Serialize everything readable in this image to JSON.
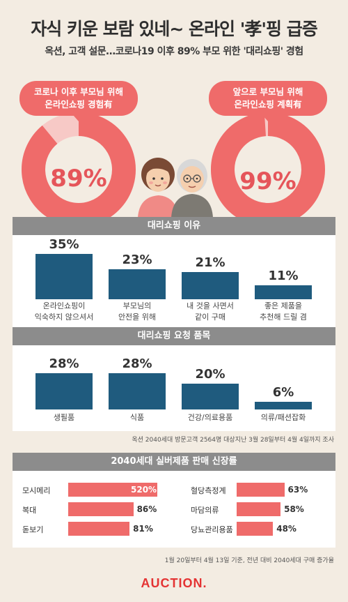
{
  "header": {
    "title": "자식 키운 보람 있네~ 온라인 '孝'핑 급증",
    "subtitle": "옥션, 고객 설문…코로나19 이후 89% 부모 위한  '대리쇼핑' 경험"
  },
  "top_stats": [
    {
      "bubble_line1": "코로나 이후 부모님 위해",
      "bubble_line2": "온라인쇼핑 경험有",
      "value_label": "89%",
      "value": 89
    },
    {
      "bubble_line1": "앞으로 부모님 위해",
      "bubble_line2": "온라인쇼핑 계획有",
      "value_label": "99%",
      "value": 99
    }
  ],
  "reasons_header": "대리쇼핑 이유",
  "items_header": "대리쇼핑 요청 품목",
  "survey_note": "옥션 2040세대 방문고객 2564명 대상지난 3월 28일부터 4월 4일까지 조사",
  "growth_header": "2040세대 실버제품 판매 신장률",
  "growth_note": "1월 20일부터 4월 13일 기준, 전년 대비 2040세대 구매 증가율",
  "logo_text": "AUCTION.",
  "colors": {
    "accent": "#ef6b6a",
    "bar": "#1f5b7e",
    "header_gray": "#8c8c8c",
    "background": "#f3ece2"
  },
  "chart_data": [
    {
      "type": "bar",
      "title": "대리쇼핑 이유",
      "categories": [
        [
          "온라인쇼핑이",
          "익숙하지 않으셔서"
        ],
        [
          "부모님의",
          "안전을 위해"
        ],
        [
          "내 것을 사면서",
          "같이 구매"
        ],
        [
          "좋은 제품을",
          "추천해 드릴 겸"
        ]
      ],
      "values": [
        35,
        23,
        21,
        11
      ],
      "value_labels": [
        "35%",
        "23%",
        "21%",
        "11%"
      ],
      "ylim": [
        0,
        40
      ]
    },
    {
      "type": "bar",
      "title": "대리쇼핑 요청 품목",
      "categories": [
        [
          "생필품"
        ],
        [
          "식품"
        ],
        [
          "건강/의료용품"
        ],
        [
          "의류/패션잡화"
        ]
      ],
      "values": [
        28,
        28,
        20,
        6
      ],
      "value_labels": [
        "28%",
        "28%",
        "20%",
        "6%"
      ],
      "ylim": [
        0,
        40
      ]
    },
    {
      "type": "bar",
      "title": "2040세대 실버제품 판매 신장률",
      "categories": [
        "모시메리",
        "복대",
        "돋보기",
        "혈당측정계",
        "마담의류",
        "당뇨관리용품"
      ],
      "values": [
        520,
        86,
        81,
        63,
        58,
        48
      ],
      "value_labels": [
        "520%",
        "86%",
        "81%",
        "63%",
        "58%",
        "48%"
      ]
    }
  ]
}
